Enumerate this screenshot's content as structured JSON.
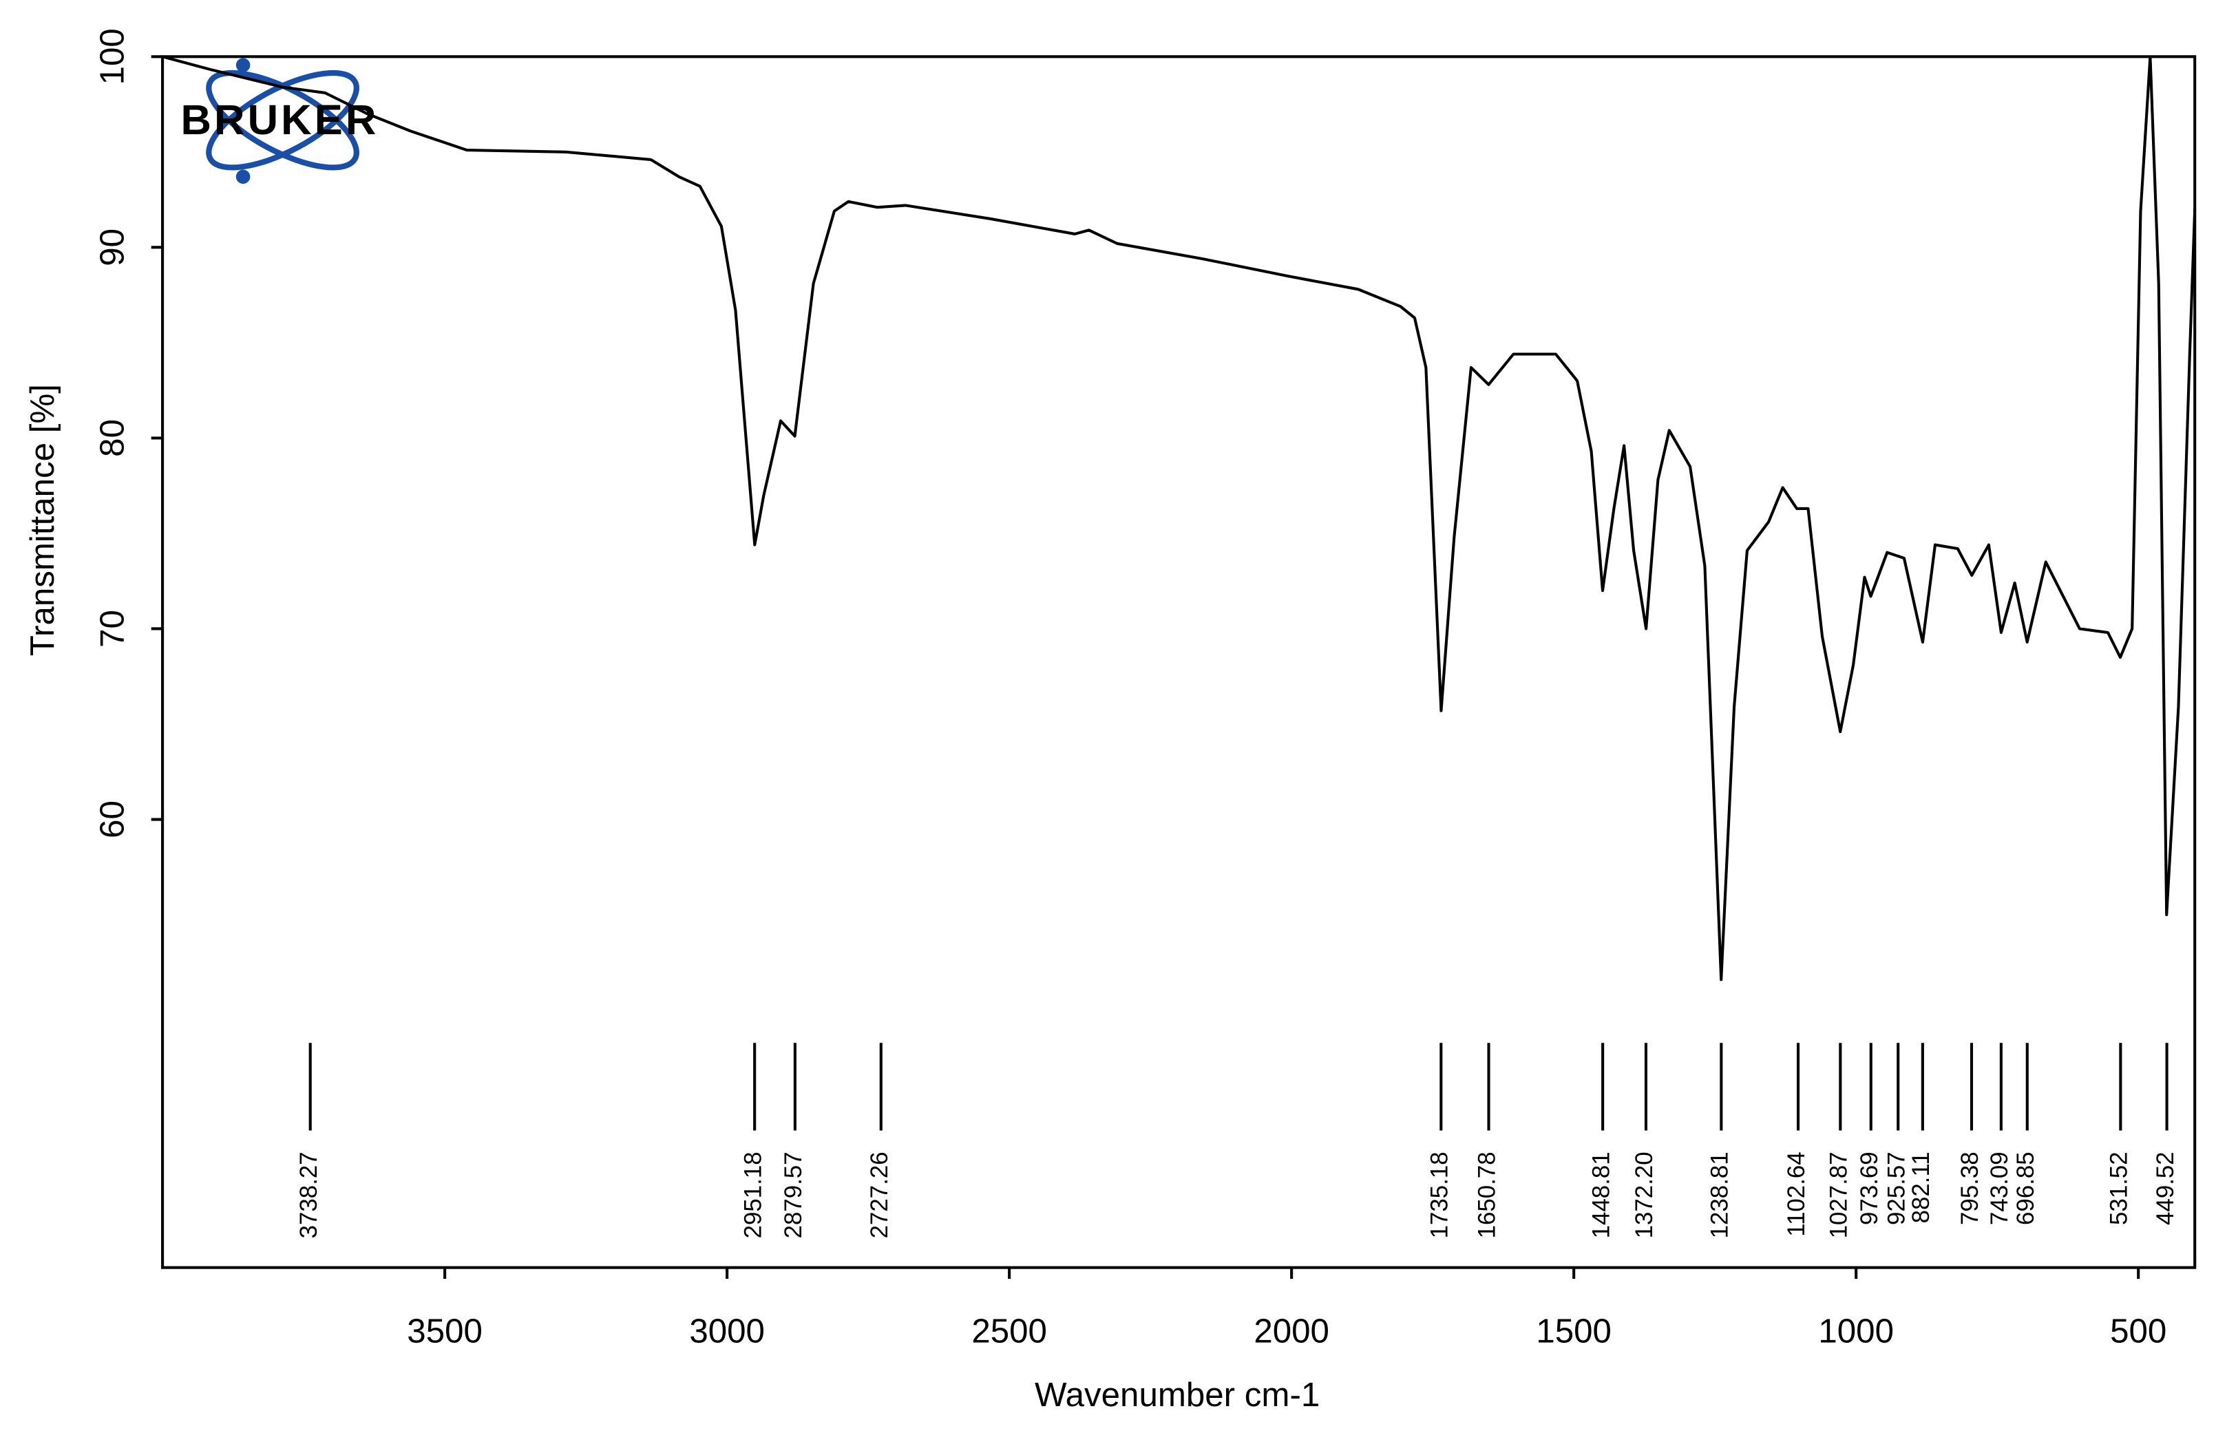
{
  "chart_data": {
    "type": "line",
    "logo": "BRUKER",
    "xlabel": "Wavenumber cm-1",
    "ylabel": "Transmittance [%]",
    "xlim": [
      4000,
      400
    ],
    "ylim": [
      36.5,
      100
    ],
    "xticks": [
      3500,
      3000,
      2500,
      2000,
      1500,
      1000,
      500
    ],
    "yticks": [
      60,
      70,
      80,
      90,
      100
    ],
    "color": "#000000",
    "x": [
      4000,
      3912,
      3787,
      3712,
      3637,
      3561,
      3461,
      3286,
      3135,
      3085,
      3048,
      3010,
      2985,
      2951,
      2935,
      2905,
      2880,
      2847,
      2810,
      2785,
      2734,
      2684,
      2534,
      2384,
      2359,
      2309,
      2158,
      2008,
      1882,
      1807,
      1782,
      1762,
      1735,
      1712,
      1682,
      1651,
      1607,
      1532,
      1494,
      1469,
      1449,
      1429,
      1411,
      1394,
      1372,
      1351,
      1331,
      1294,
      1268,
      1239,
      1216,
      1193,
      1155,
      1130,
      1105,
      1085,
      1060,
      1028,
      1005,
      985,
      974,
      945,
      915,
      882,
      860,
      820,
      795,
      765,
      743,
      719,
      697,
      664,
      604,
      554,
      532,
      511,
      496,
      479,
      464,
      450,
      429,
      409,
      400
    ],
    "values": [
      100,
      99.3,
      98.4,
      98.1,
      97,
      96.1,
      95.1,
      95.0,
      94.6,
      93.7,
      93.2,
      91.1,
      86.7,
      74.4,
      77,
      80.9,
      80.1,
      88.1,
      91.9,
      92.4,
      92.1,
      92.2,
      91.5,
      90.7,
      90.9,
      90.2,
      89.4,
      88.5,
      87.8,
      86.9,
      86.3,
      83.7,
      65.7,
      74.8,
      83.7,
      82.8,
      84.4,
      84.4,
      83,
      79.3,
      72,
      76.3,
      79.6,
      74.1,
      70,
      77.8,
      80.4,
      78.5,
      73.3,
      51.6,
      65.9,
      74.1,
      75.6,
      77.4,
      76.3,
      76.3,
      69.6,
      64.6,
      68.1,
      72.7,
      71.7,
      74,
      73.7,
      69.3,
      74.4,
      74.2,
      72.8,
      74.4,
      69.8,
      72.4,
      69.3,
      73.5,
      70,
      69.8,
      68.5,
      70,
      91.9,
      100,
      88.1,
      55,
      65.9,
      84.4,
      92
    ],
    "peaks": [
      {
        "value": 3738.27,
        "label": "3738.27"
      },
      {
        "value": 2951.18,
        "label": "2951.18"
      },
      {
        "value": 2879.57,
        "label": "2879.57"
      },
      {
        "value": 2727.26,
        "label": "2727.26"
      },
      {
        "value": 1735.18,
        "label": "1735.18"
      },
      {
        "value": 1650.78,
        "label": "1650.78"
      },
      {
        "value": 1448.81,
        "label": "1448.81"
      },
      {
        "value": 1372.2,
        "label": "1372.20"
      },
      {
        "value": 1238.81,
        "label": "1238.81"
      },
      {
        "value": 1102.64,
        "label": "1102.64"
      },
      {
        "value": 1027.87,
        "label": "1027.87"
      },
      {
        "value": 973.69,
        "label": "973.69"
      },
      {
        "value": 925.57,
        "label": "925.57"
      },
      {
        "value": 882.11,
        "label": "882.11"
      },
      {
        "value": 795.38,
        "label": "795.38"
      },
      {
        "value": 743.09,
        "label": "743.09"
      },
      {
        "value": 696.85,
        "label": "696.85"
      },
      {
        "value": 531.52,
        "label": "531.52"
      },
      {
        "value": 449.52,
        "label": "449.52"
      }
    ]
  }
}
